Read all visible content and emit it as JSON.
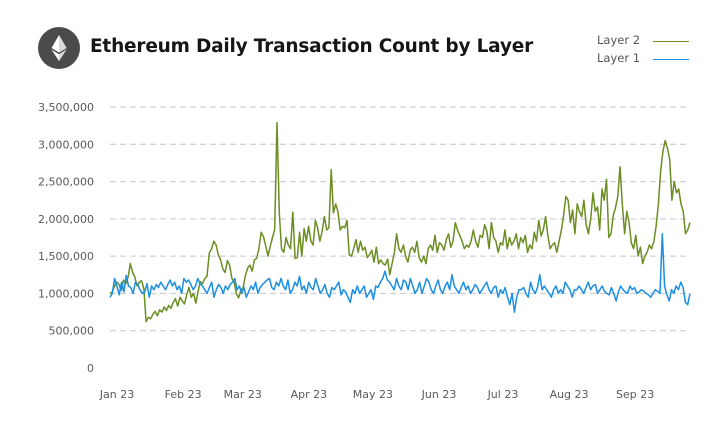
{
  "header": {
    "title": "Ethereum Daily Transaction Count by Layer",
    "logo_icon": "ethereum-icon"
  },
  "legend": [
    {
      "name": "Layer 2",
      "color": "#6b8e23"
    },
    {
      "name": "Layer 1",
      "color": "#1a8fe3"
    }
  ],
  "chart_data": {
    "type": "line",
    "title": "Ethereum Daily Transaction Count by Layer",
    "xlabel": "",
    "ylabel": "",
    "x_start": "2023-01-01",
    "x_end": "2023-09-30",
    "xlim": [
      "2023-01-01",
      "2023-09-30"
    ],
    "ylim": [
      0,
      3500000
    ],
    "y_ticks": [
      0,
      500000,
      1000000,
      1500000,
      2000000,
      2500000,
      3000000,
      3500000
    ],
    "y_tick_labels": [
      "0",
      "500,000",
      "1,000,000",
      "1,500,000",
      "2,000,000",
      "2,500,000",
      "3,000,000",
      "3,500,000"
    ],
    "x_ticks": [
      "2023-01-01",
      "2023-02-01",
      "2023-03-01",
      "2023-04-01",
      "2023-05-01",
      "2023-06-01",
      "2023-07-01",
      "2023-08-01",
      "2023-09-01"
    ],
    "x_tick_labels": [
      "Jan 23",
      "Feb 23",
      "Mar 23",
      "Apr 23",
      "May 23",
      "Jun 23",
      "Jul 23",
      "Aug 23",
      "Sep 23"
    ],
    "grid": true,
    "legend_position": "top-right",
    "series": [
      {
        "name": "Layer 2",
        "color": "#6b8e23",
        "values": [
          1000000,
          1020000,
          1100000,
          1150000,
          1120000,
          1040000,
          1180000,
          1130000,
          1220000,
          1400000,
          1280000,
          1220000,
          1100000,
          1150000,
          1170000,
          1060000,
          620000,
          680000,
          660000,
          720000,
          760000,
          700000,
          780000,
          750000,
          820000,
          770000,
          840000,
          800000,
          880000,
          930000,
          830000,
          950000,
          900000,
          860000,
          980000,
          1080000,
          950000,
          1000000,
          870000,
          1020000,
          1160000,
          1130000,
          1200000,
          1230000,
          1540000,
          1600000,
          1700000,
          1650000,
          1520000,
          1450000,
          1330000,
          1280000,
          1440000,
          1380000,
          1200000,
          1150000,
          1000000,
          940000,
          1040000,
          1080000,
          1240000,
          1340000,
          1380000,
          1300000,
          1450000,
          1470000,
          1600000,
          1820000,
          1760000,
          1640000,
          1500000,
          1630000,
          1750000,
          1860000,
          3290000,
          2080000,
          1600000,
          1550000,
          1750000,
          1650000,
          1600000,
          2090000,
          1470000,
          1480000,
          1820000,
          1500000,
          1870000,
          1700000,
          1900000,
          1700000,
          1650000,
          1980000,
          1880000,
          1700000,
          1830000,
          2030000,
          1850000,
          1880000,
          2660000,
          2080000,
          2200000,
          2100000,
          1850000,
          1900000,
          1880000,
          1980000,
          1520000,
          1500000,
          1600000,
          1720000,
          1550000,
          1700000,
          1580000,
          1620000,
          1480000,
          1520000,
          1580000,
          1420000,
          1620000,
          1400000,
          1450000,
          1400000,
          1380000,
          1460000,
          1250000,
          1400000,
          1550000,
          1800000,
          1600000,
          1550000,
          1650000,
          1500000,
          1420000,
          1580000,
          1620000,
          1550000,
          1700000,
          1480000,
          1420000,
          1500000,
          1400000,
          1600000,
          1650000,
          1580000,
          1780000,
          1550000,
          1680000,
          1650000,
          1580000,
          1720000,
          1800000,
          1620000,
          1700000,
          1950000,
          1850000,
          1780000,
          1700000,
          1600000,
          1650000,
          1620000,
          1700000,
          1850000,
          1700000,
          1620000,
          1780000,
          1750000,
          1920000,
          1830000,
          1600000,
          1950000,
          1750000,
          1700000,
          1550000,
          1680000,
          1650000,
          1850000,
          1600000,
          1750000,
          1650000,
          1700000,
          1800000,
          1600000,
          1750000,
          1680000,
          1780000,
          1550000,
          1650000,
          1600000,
          1820000,
          1700000,
          1980000,
          1770000,
          1850000,
          2030000,
          1780000,
          1600000,
          1650000,
          1680000,
          1550000,
          1700000,
          1850000,
          2050000,
          2300000,
          2250000,
          1950000,
          2120000,
          1800000,
          2200000,
          2100000,
          2030000,
          2250000,
          1920000,
          1800000,
          2000000,
          2350000,
          2100000,
          2160000,
          1850000,
          2400000,
          2250000,
          2530000,
          1750000,
          1800000,
          2050000,
          2150000,
          2300000,
          2700000,
          2200000,
          1800000,
          2100000,
          1950000,
          1680000,
          1600000,
          1780000,
          1500000,
          1620000,
          1400000,
          1500000,
          1550000,
          1650000,
          1600000,
          1700000,
          1900000,
          2200000,
          2650000,
          2900000,
          3050000,
          2950000,
          2800000,
          2250000,
          2500000,
          2350000,
          2400000,
          2200000,
          2100000,
          1800000,
          1850000,
          1950000
        ]
      },
      {
        "name": "Layer 1",
        "color": "#1a8fe3",
        "values": [
          950000,
          1000000,
          1200000,
          1100000,
          980000,
          1150000,
          1020000,
          1240000,
          1100000,
          1080000,
          1000000,
          1150000,
          1120000,
          1050000,
          1000000,
          1020000,
          1130000,
          950000,
          1100000,
          1050000,
          1120000,
          1080000,
          1150000,
          1100000,
          1050000,
          1120000,
          1180000,
          1100000,
          1150000,
          1050000,
          1100000,
          1000000,
          1200000,
          1150000,
          1180000,
          1120000,
          1050000,
          1100000,
          1200000,
          1130000,
          1100000,
          1050000,
          1000000,
          1080000,
          1150000,
          950000,
          1050000,
          1120000,
          1080000,
          1000000,
          1100000,
          1050000,
          1120000,
          1150000,
          1200000,
          1050000,
          1100000,
          1000000,
          1080000,
          950000,
          1020000,
          1100000,
          1050000,
          1150000,
          1000000,
          1080000,
          1120000,
          1150000,
          1180000,
          1200000,
          1080000,
          1050000,
          1150000,
          1100000,
          1200000,
          1100000,
          1050000,
          1180000,
          1000000,
          1050000,
          1150000,
          1100000,
          1230000,
          1050000,
          1100000,
          1000000,
          1150000,
          1080000,
          1050000,
          1200000,
          1100000,
          1000000,
          1050000,
          1120000,
          1000000,
          950000,
          1080000,
          1050000,
          1100000,
          1150000,
          980000,
          1050000,
          1020000,
          950000,
          880000,
          1050000,
          1000000,
          1100000,
          1000000,
          1050000,
          1100000,
          950000,
          1000000,
          1050000,
          920000,
          1100000,
          1080000,
          1150000,
          1200000,
          1300000,
          1180000,
          1150000,
          1100000,
          1050000,
          1200000,
          1100000,
          1050000,
          1180000,
          1150000,
          1050000,
          1200000,
          1100000,
          1000000,
          1050000,
          1150000,
          1000000,
          1100000,
          1200000,
          1150000,
          1050000,
          1000000,
          1100000,
          1180000,
          1050000,
          1000000,
          1100000,
          1150000,
          1050000,
          1250000,
          1100000,
          1050000,
          1000000,
          1080000,
          1150000,
          1050000,
          1100000,
          1000000,
          1050000,
          1120000,
          1080000,
          1000000,
          1050000,
          1100000,
          1150000,
          1050000,
          1000000,
          1080000,
          1100000,
          950000,
          1050000,
          1000000,
          1080000,
          950000,
          850000,
          1000000,
          750000,
          950000,
          1050000,
          1050000,
          1080000,
          1000000,
          950000,
          1150000,
          1050000,
          1000000,
          1080000,
          1250000,
          1050000,
          1100000,
          1050000,
          1000000,
          950000,
          1050000,
          1100000,
          1000000,
          1050000,
          1000000,
          1150000,
          1100000,
          1050000,
          950000,
          1050000,
          1050000,
          1100000,
          1050000,
          1000000,
          1080000,
          1150000,
          1050000,
          1100000,
          1120000,
          1000000,
          1050000,
          1100000,
          1030000,
          1000000,
          980000,
          1080000,
          1000000,
          900000,
          1020000,
          1100000,
          1050000,
          1020000,
          1000000,
          1100000,
          1050000,
          1080000,
          1000000,
          1020000,
          1050000,
          1030000,
          1000000,
          980000,
          950000,
          1000000,
          1050000,
          1030000,
          1000000,
          1800000,
          1100000,
          980000,
          900000,
          1050000,
          1000000,
          1100000,
          1050000,
          1150000,
          1080000,
          880000,
          850000,
          1000000
        ]
      }
    ]
  }
}
